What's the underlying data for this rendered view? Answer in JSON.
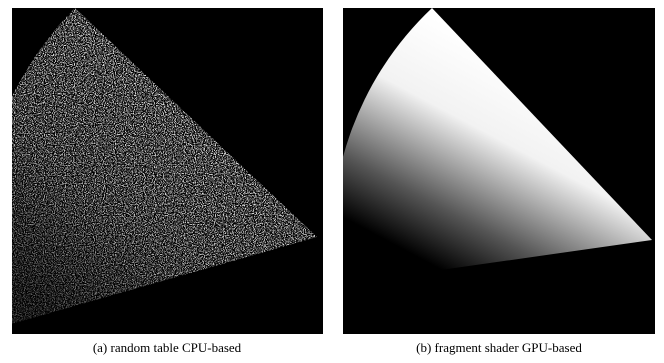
{
  "figure": {
    "panels": [
      {
        "caption": "(a) random table CPU-based"
      },
      {
        "caption": "(b) fragment shader GPU-based"
      }
    ]
  }
}
